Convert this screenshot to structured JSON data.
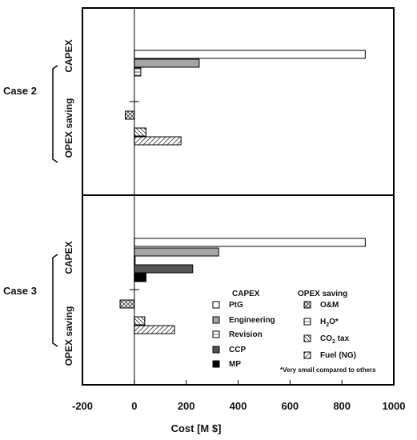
{
  "chart_data": {
    "type": "bar",
    "orientation": "horizontal",
    "xlabel": "Cost [M $]",
    "xlim": [
      -200,
      1000
    ],
    "xticks": [
      -200,
      0,
      200,
      400,
      600,
      800,
      1000
    ],
    "panels": [
      {
        "case": "Case 2",
        "groups": [
          {
            "label": "CAPEX",
            "bars": [
              {
                "item": "PtG",
                "value": 890
              },
              {
                "item": "Engineering",
                "value": 250
              },
              {
                "item": "Revision",
                "value": 25
              }
            ]
          },
          {
            "label": "OPEX saving",
            "bars": [
              {
                "item": "O&M",
                "value": -35
              },
              {
                "item": "H2O",
                "value": 45
              },
              {
                "item": "CO2 tax",
                "value": 45
              },
              {
                "item": "Fuel (NG)",
                "value": 180
              }
            ]
          }
        ]
      },
      {
        "case": "Case 3",
        "groups": [
          {
            "label": "CAPEX",
            "bars": [
              {
                "item": "PtG",
                "value": 890
              },
              {
                "item": "Engineering",
                "value": 325
              },
              {
                "item": "Revision",
                "value": 3
              },
              {
                "item": "CCP",
                "value": 225
              },
              {
                "item": "MP",
                "value": 45
              }
            ]
          },
          {
            "label": "OPEX saving",
            "bars": [
              {
                "item": "O&M",
                "value": -55
              },
              {
                "item": "H2O",
                "value": 40
              },
              {
                "item": "CO2 tax",
                "value": 40
              },
              {
                "item": "Fuel (NG)",
                "value": 155
              }
            ]
          }
        ]
      }
    ],
    "legend": {
      "capex_title": "CAPEX",
      "opex_title": "OPEX saving",
      "capex_items": [
        {
          "key": "PtG",
          "label": "PtG",
          "fill": "#ffffff",
          "text_color": "#111111"
        },
        {
          "key": "Engineering",
          "label": "Engineering",
          "fill": "#a6a6a6",
          "text_color": "#9a9a9a"
        },
        {
          "key": "Revision",
          "label": "Revision",
          "fill": "#ffffff",
          "text_color": "#111111"
        },
        {
          "key": "CCP",
          "label": "CCP",
          "fill": "#555555",
          "text_color": "#555555"
        },
        {
          "key": "MP",
          "label": "MP",
          "fill": "#000000",
          "text_color": "#111111"
        }
      ],
      "opex_items": [
        {
          "key": "O&M",
          "label": "O&M"
        },
        {
          "key": "H2O",
          "label_main": "H",
          "label_sub": "2",
          "label_tail": "O*"
        },
        {
          "key": "CO2 tax",
          "label_main": "CO",
          "label_sub": "2",
          "label_tail": " tax"
        },
        {
          "key": "Fuel (NG)",
          "label": "Fuel (NG)"
        }
      ],
      "note": "*Very small compared to others"
    }
  }
}
